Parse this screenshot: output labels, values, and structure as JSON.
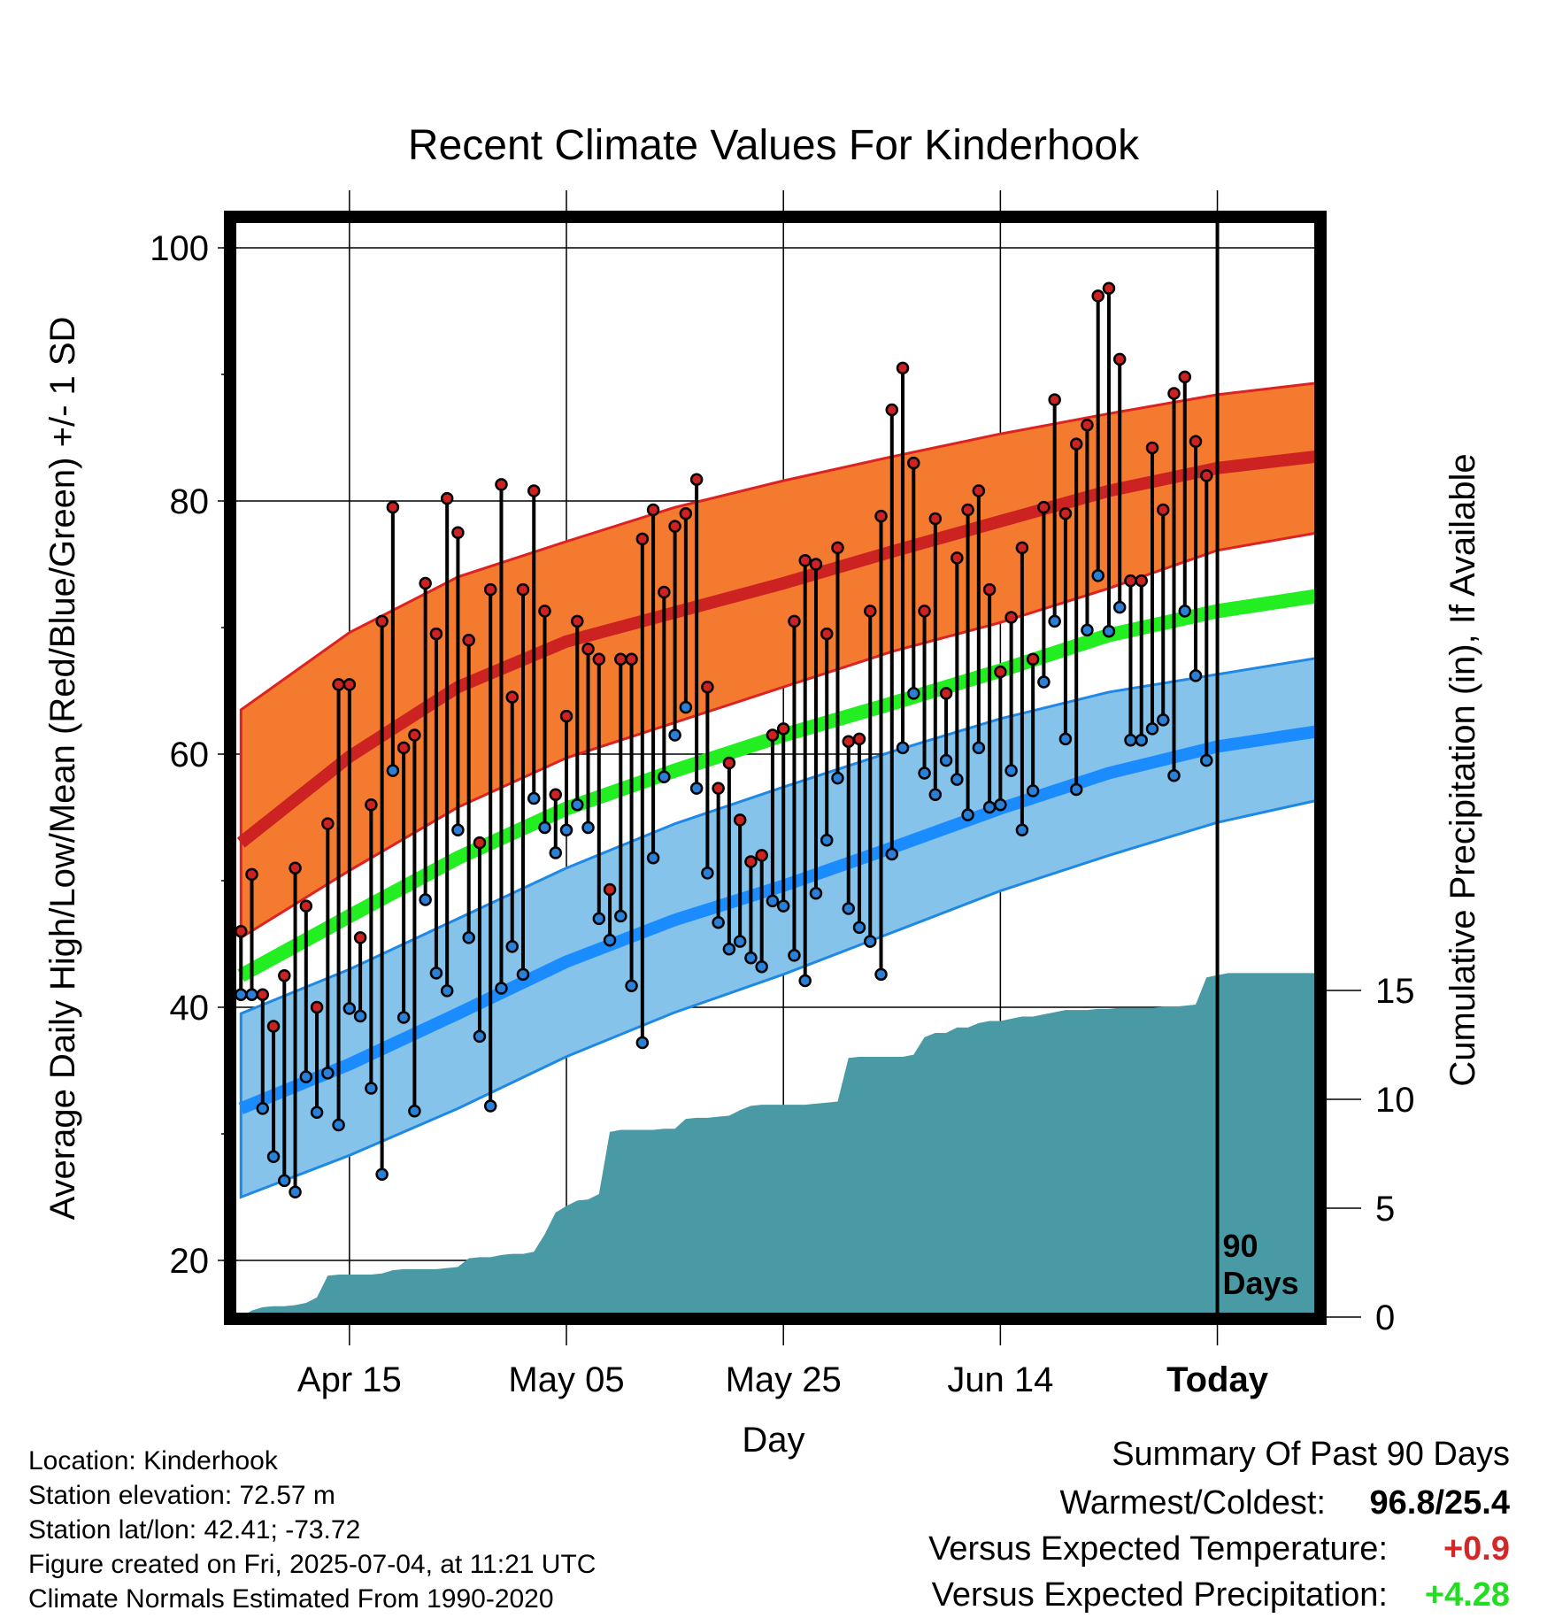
{
  "chart_data": {
    "type": "line",
    "title": "Recent Climate Values For Kinderhook",
    "xlabel": "Day",
    "ylabel": "Average Daily High/Low/Mean (Red/Blue/Green) +/- 1 SD",
    "y2label": "Cumulative Precipitation (in), If Available",
    "ylim": [
      16,
      102
    ],
    "y2lim": [
      0,
      17.5
    ],
    "yticks": [
      20,
      40,
      60,
      80,
      100
    ],
    "y2ticks": [
      0,
      5,
      10,
      15
    ],
    "xticks": [
      {
        "day": 10,
        "label": "Apr 15"
      },
      {
        "day": 30,
        "label": "May 05"
      },
      {
        "day": 50,
        "label": "May 25"
      },
      {
        "day": 70,
        "label": "Jun 14"
      },
      {
        "day": 90,
        "label": "Today"
      }
    ],
    "today_marker": {
      "day": 90,
      "label_line1": "90",
      "label_line2": "Days"
    },
    "grid": true,
    "normals": {
      "days": [
        0,
        10,
        20,
        30,
        40,
        50,
        60,
        70,
        80,
        90,
        100
      ],
      "high_mean": [
        53,
        59.8,
        65.3,
        68.9,
        71.2,
        73.5,
        76.0,
        78.4,
        80.8,
        82.6,
        83.6
      ],
      "high_plus_sd": [
        63.5,
        69.6,
        74.0,
        76.8,
        79.5,
        81.6,
        83.5,
        85.3,
        86.9,
        88.4,
        89.4
      ],
      "high_minus_sd": [
        45.5,
        50.8,
        55.8,
        59.7,
        62.5,
        65.3,
        68.1,
        70.4,
        73.1,
        76.1,
        77.6
      ],
      "mean_mean": [
        42.5,
        47.2,
        51.8,
        55.7,
        58.7,
        61.5,
        64.0,
        66.6,
        69.4,
        71.3,
        72.6
      ],
      "low_mean": [
        32.0,
        35.5,
        39.5,
        43.6,
        46.9,
        49.6,
        52.6,
        55.7,
        58.5,
        60.6,
        61.9
      ],
      "low_plus_sd": [
        39.5,
        43.0,
        47.0,
        51.0,
        54.5,
        57.4,
        60.2,
        62.8,
        64.9,
        66.3,
        67.7
      ],
      "low_minus_sd": [
        25.0,
        28.3,
        32.0,
        36.1,
        39.6,
        42.6,
        45.9,
        49.2,
        52.0,
        54.6,
        56.5
      ]
    },
    "series": [
      {
        "name": "High",
        "color": "#cc2222",
        "values": [
          46,
          50.5,
          41,
          38.5,
          42.5,
          51,
          48,
          40,
          54.5,
          65.5,
          65.5,
          45.5,
          56,
          70.5,
          79.5,
          60.5,
          61.5,
          73.5,
          69.5,
          80.2,
          77.5,
          69,
          53,
          73,
          81.3,
          64.5,
          73,
          80.8,
          71.3,
          56.8,
          63,
          70.5,
          68.3,
          67.5,
          49.3,
          67.5,
          67.5,
          77,
          79.3,
          72.8,
          78,
          79,
          81.7,
          65.3,
          57.3,
          59.3,
          54.8,
          51.5,
          52,
          61.5,
          62,
          70.5,
          75.3,
          75,
          69.5,
          76.3,
          61,
          61.2,
          71.3,
          78.8,
          87.2,
          90.5,
          83,
          71.3,
          78.6,
          64.8,
          75.5,
          79.3,
          80.8,
          73,
          66.5,
          70.8,
          76.3,
          67.5,
          79.5,
          88,
          79,
          84.5,
          86,
          96.2,
          96.8,
          91.2,
          73.7,
          73.7,
          84.2,
          79.3,
          88.5,
          89.8,
          84.7,
          82
        ]
      },
      {
        "name": "Low",
        "color": "#2a7fd6",
        "values": [
          41,
          41,
          32,
          28.2,
          26.3,
          25.4,
          34.5,
          31.7,
          34.8,
          30.7,
          39.9,
          39.3,
          33.6,
          26.8,
          58.7,
          39.2,
          31.8,
          48.5,
          42.7,
          41.3,
          54,
          45.5,
          37.7,
          32.2,
          41.5,
          44.8,
          42.6,
          56.5,
          54.2,
          52.2,
          54,
          56,
          54.2,
          47,
          45.3,
          47.2,
          41.7,
          37.2,
          51.8,
          58.2,
          61.5,
          63.7,
          57.3,
          50.6,
          46.7,
          44.6,
          45.2,
          43.9,
          43.2,
          48.4,
          48,
          44.1,
          42.1,
          49,
          53.2,
          58.1,
          47.8,
          46.3,
          45.2,
          42.6,
          52.1,
          60.5,
          64.8,
          58.5,
          56.8,
          59.5,
          58,
          55.2,
          60.5,
          55.8,
          56,
          58.7,
          54,
          57.1,
          65.7,
          70.5,
          61.2,
          57.2,
          69.8,
          74.1,
          69.7,
          71.6,
          61.1,
          61.1,
          62,
          62.7,
          58.3,
          71.3,
          66.2,
          59.5
        ]
      },
      {
        "name": "Mean",
        "color": "#22ee22",
        "values": []
      }
    ],
    "precipitation": {
      "days": [
        0,
        1,
        2,
        3,
        4,
        5,
        6,
        7,
        8,
        9,
        10,
        11,
        12,
        13,
        14,
        15,
        16,
        17,
        18,
        19,
        20,
        21,
        22,
        23,
        24,
        25,
        26,
        27,
        28,
        29,
        30,
        31,
        32,
        33,
        34,
        35,
        36,
        37,
        38,
        39,
        40,
        41,
        42,
        43,
        44,
        45,
        46,
        47,
        48,
        49,
        50,
        51,
        52,
        53,
        54,
        55,
        56,
        57,
        58,
        59,
        60,
        61,
        62,
        63,
        64,
        65,
        66,
        67,
        68,
        69,
        70,
        71,
        72,
        73,
        74,
        75,
        76,
        77,
        78,
        79,
        80,
        81,
        82,
        83,
        84,
        85,
        86,
        87,
        88,
        89,
        90,
        91,
        92,
        93,
        94,
        95,
        96,
        97,
        98,
        99,
        100
      ],
      "values": [
        0,
        0.3,
        0.45,
        0.5,
        0.5,
        0.55,
        0.65,
        0.9,
        1.9,
        1.95,
        1.95,
        1.95,
        1.95,
        2.0,
        2.15,
        2.2,
        2.2,
        2.2,
        2.2,
        2.25,
        2.3,
        2.7,
        2.75,
        2.75,
        2.85,
        2.9,
        2.9,
        3.0,
        3.8,
        4.8,
        5.1,
        5.35,
        5.4,
        5.65,
        8.5,
        8.6,
        8.6,
        8.6,
        8.6,
        8.65,
        8.65,
        9.1,
        9.15,
        9.15,
        9.2,
        9.25,
        9.5,
        9.7,
        9.75,
        9.75,
        9.75,
        9.75,
        9.75,
        9.8,
        9.85,
        9.9,
        11.9,
        11.95,
        11.95,
        11.95,
        11.95,
        11.95,
        12.05,
        12.85,
        13.05,
        13.05,
        13.3,
        13.3,
        13.5,
        13.6,
        13.6,
        13.7,
        13.8,
        13.8,
        13.9,
        14.0,
        14.1,
        14.1,
        14.1,
        14.15,
        14.15,
        14.2,
        14.2,
        14.2,
        14.2,
        14.25,
        14.25,
        14.3,
        14.35,
        15.6,
        15.7,
        15.8,
        15.8,
        15.8,
        15.8,
        15.8,
        15.8,
        15.8,
        15.8,
        15.8,
        15.8
      ],
      "color": "#4a9aa5"
    }
  },
  "info": {
    "location": "Location: Kinderhook",
    "elevation": "Station elevation: 72.57 m",
    "latlon": "Station lat/lon: 42.41; -73.72",
    "created": "Figure created on Fri, 2025-07-04, at 11:21 UTC",
    "normals": "Climate Normals Estimated From 1990-2020"
  },
  "summary": {
    "title": "Summary Of Past 90 Days",
    "warm_cold_label": "Warmest/Coldest:",
    "warm_cold_value": "96.8/25.4",
    "temp_label": "Versus Expected Temperature:",
    "temp_value": "+0.9",
    "temp_color": "#d62728",
    "precip_label": "Versus Expected Precipitation:",
    "precip_value": "+4.28",
    "precip_color": "#22dd22"
  }
}
